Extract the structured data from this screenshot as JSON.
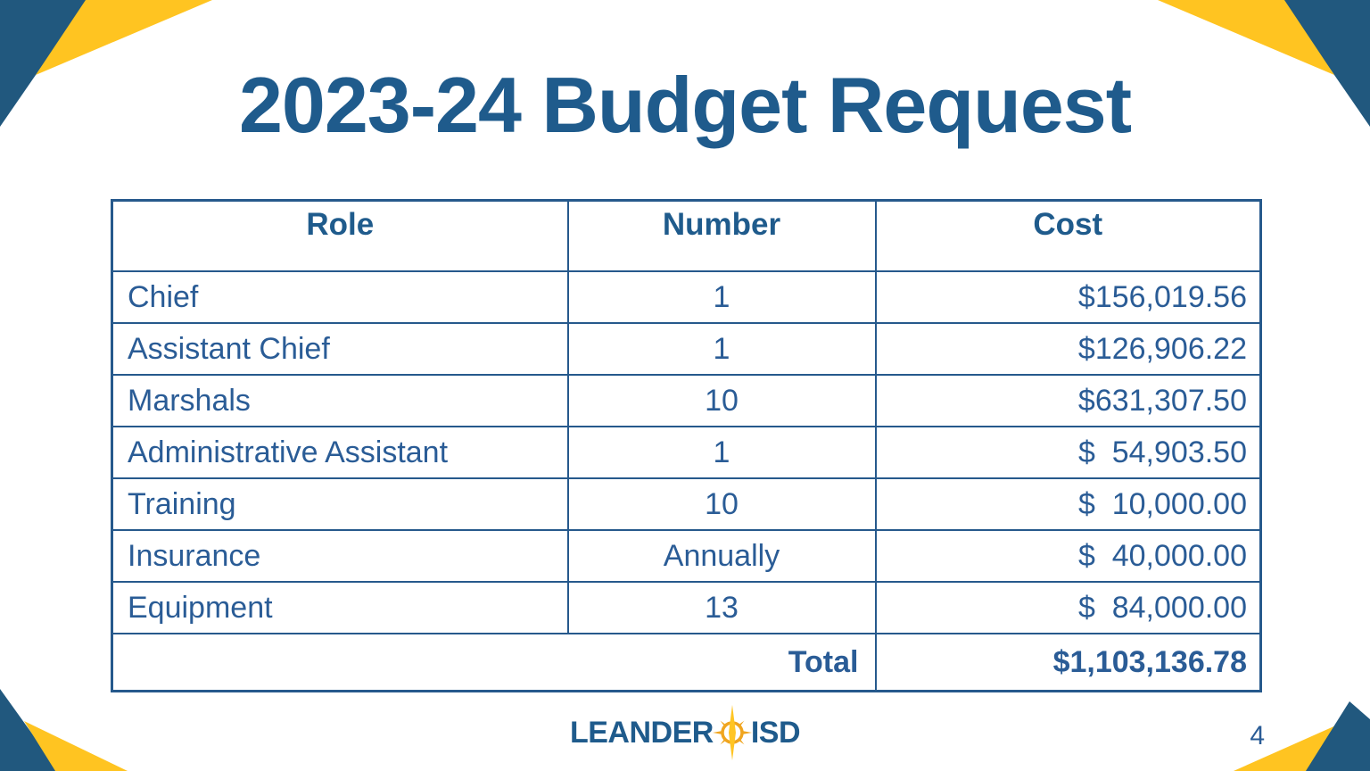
{
  "slide": {
    "title": "2023-24 Budget Request",
    "page_number": "4"
  },
  "table": {
    "headers": [
      "Role",
      "Number",
      "Cost"
    ],
    "rows": [
      {
        "role": "Chief",
        "number": "1",
        "cost": "$156,019.56"
      },
      {
        "role": "Assistant Chief",
        "number": "1",
        "cost": "$126,906.22"
      },
      {
        "role": "Marshals",
        "number": "10",
        "cost": "$631,307.50"
      },
      {
        "role": "Administrative Assistant",
        "number": "1",
        "cost": "$  54,903.50"
      },
      {
        "role": "Training",
        "number": "10",
        "cost": "$  10,000.00"
      },
      {
        "role": "Insurance",
        "number": "Annually",
        "cost": "$  40,000.00"
      },
      {
        "role": "Equipment",
        "number": "13",
        "cost": "$  84,000.00"
      }
    ],
    "total_label": "Total",
    "total_cost": "$1,103,136.78"
  },
  "logo": {
    "word_left": "LEANDER",
    "word_right": "ISD",
    "star_icon": "compass-star-icon"
  },
  "colors": {
    "brand_blue": "#1F5B8C",
    "text_blue": "#2A5C96",
    "border_blue": "#26598C",
    "corner_blue": "#21587E",
    "slide_yellow": "#FFC421",
    "logo_gold": "#F0A51F",
    "logo_yellow": "#FFC524"
  }
}
